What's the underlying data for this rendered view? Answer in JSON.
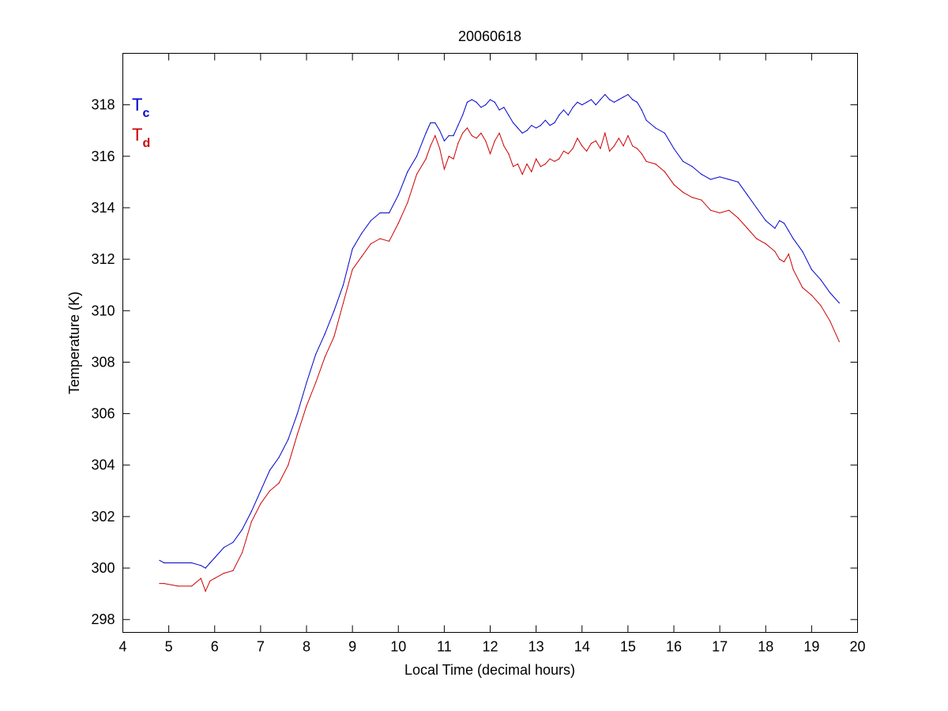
{
  "chart_data": {
    "type": "line",
    "title": "20060618",
    "xlabel": "Local Time (decimal hours)",
    "ylabel": "Temperature (K)",
    "xlim": [
      4,
      20
    ],
    "ylim": [
      297.5,
      320
    ],
    "xticks": [
      4,
      5,
      6,
      7,
      8,
      9,
      10,
      11,
      12,
      13,
      14,
      15,
      16,
      17,
      18,
      19,
      20
    ],
    "yticks": [
      298,
      300,
      302,
      304,
      306,
      308,
      310,
      312,
      314,
      316,
      318
    ],
    "grid": false,
    "legend": {
      "position": "top-left",
      "entries": [
        {
          "main": "T",
          "sub": "c",
          "color": "#0000cc"
        },
        {
          "main": "T",
          "sub": "d",
          "color": "#cc0000"
        }
      ]
    },
    "series": [
      {
        "color": "#0000cc",
        "x": [
          4.8,
          4.9,
          5.2,
          5.5,
          5.7,
          5.8,
          5.9,
          6.0,
          6.2,
          6.4,
          6.6,
          6.8,
          7.0,
          7.2,
          7.4,
          7.6,
          7.8,
          8.0,
          8.2,
          8.4,
          8.6,
          8.8,
          9.0,
          9.2,
          9.4,
          9.6,
          9.8,
          10.0,
          10.2,
          10.4,
          10.6,
          10.7,
          10.8,
          10.9,
          11.0,
          11.1,
          11.2,
          11.3,
          11.4,
          11.5,
          11.6,
          11.7,
          11.8,
          11.9,
          12.0,
          12.1,
          12.2,
          12.3,
          12.4,
          12.5,
          12.6,
          12.7,
          12.8,
          12.9,
          13.0,
          13.1,
          13.2,
          13.3,
          13.4,
          13.5,
          13.6,
          13.7,
          13.8,
          13.9,
          14.0,
          14.1,
          14.2,
          14.3,
          14.4,
          14.5,
          14.6,
          14.7,
          14.8,
          14.9,
          15.0,
          15.1,
          15.2,
          15.3,
          15.4,
          15.6,
          15.8,
          16.0,
          16.2,
          16.4,
          16.6,
          16.8,
          17.0,
          17.2,
          17.4,
          17.6,
          17.8,
          18.0,
          18.2,
          18.3,
          18.4,
          18.5,
          18.6,
          18.8,
          19.0,
          19.2,
          19.4,
          19.6
        ],
        "y": [
          300.3,
          300.2,
          300.2,
          300.2,
          300.1,
          300.0,
          300.2,
          300.4,
          300.8,
          301.0,
          301.5,
          302.2,
          303.0,
          303.8,
          304.3,
          305.0,
          306.0,
          307.2,
          308.3,
          309.1,
          310.0,
          311.0,
          312.4,
          313.0,
          313.5,
          313.8,
          313.8,
          314.5,
          315.4,
          316.0,
          316.9,
          317.3,
          317.3,
          317.0,
          316.6,
          316.8,
          316.8,
          317.2,
          317.6,
          318.1,
          318.2,
          318.1,
          317.9,
          318.0,
          318.2,
          318.1,
          317.8,
          317.9,
          317.6,
          317.3,
          317.1,
          316.9,
          317.0,
          317.2,
          317.1,
          317.2,
          317.4,
          317.2,
          317.3,
          317.6,
          317.8,
          317.6,
          317.9,
          318.1,
          318.0,
          318.1,
          318.2,
          318.0,
          318.2,
          318.4,
          318.2,
          318.1,
          318.2,
          318.3,
          318.4,
          318.2,
          318.1,
          317.8,
          317.4,
          317.1,
          316.9,
          316.3,
          315.8,
          315.6,
          315.3,
          315.1,
          315.2,
          315.1,
          315.0,
          314.5,
          314.0,
          313.5,
          313.2,
          313.5,
          313.4,
          313.1,
          312.8,
          312.3,
          311.6,
          311.2,
          310.7,
          310.3
        ]
      },
      {
        "color": "#cc0000",
        "x": [
          4.8,
          4.9,
          5.2,
          5.5,
          5.7,
          5.8,
          5.9,
          6.0,
          6.2,
          6.4,
          6.6,
          6.8,
          7.0,
          7.2,
          7.4,
          7.6,
          7.8,
          8.0,
          8.2,
          8.4,
          8.6,
          8.8,
          9.0,
          9.2,
          9.4,
          9.6,
          9.8,
          10.0,
          10.2,
          10.4,
          10.6,
          10.7,
          10.8,
          10.9,
          11.0,
          11.1,
          11.2,
          11.3,
          11.4,
          11.5,
          11.6,
          11.7,
          11.8,
          11.9,
          12.0,
          12.1,
          12.2,
          12.3,
          12.4,
          12.5,
          12.6,
          12.7,
          12.8,
          12.9,
          13.0,
          13.1,
          13.2,
          13.3,
          13.4,
          13.5,
          13.6,
          13.7,
          13.8,
          13.9,
          14.0,
          14.1,
          14.2,
          14.3,
          14.4,
          14.5,
          14.6,
          14.7,
          14.8,
          14.9,
          15.0,
          15.1,
          15.2,
          15.3,
          15.4,
          15.6,
          15.8,
          16.0,
          16.2,
          16.4,
          16.6,
          16.8,
          17.0,
          17.2,
          17.4,
          17.6,
          17.8,
          18.0,
          18.2,
          18.3,
          18.4,
          18.5,
          18.6,
          18.8,
          19.0,
          19.2,
          19.4,
          19.6
        ],
        "y": [
          299.4,
          299.4,
          299.3,
          299.3,
          299.6,
          299.1,
          299.5,
          299.6,
          299.8,
          299.9,
          300.6,
          301.8,
          302.5,
          303.0,
          303.3,
          304.0,
          305.2,
          306.3,
          307.2,
          308.2,
          309.0,
          310.3,
          311.6,
          312.1,
          312.6,
          312.8,
          312.7,
          313.4,
          314.2,
          315.3,
          315.9,
          316.4,
          316.8,
          316.3,
          315.5,
          316.0,
          315.9,
          316.5,
          316.9,
          317.1,
          316.8,
          316.7,
          316.9,
          316.6,
          316.1,
          316.6,
          316.9,
          316.4,
          316.1,
          315.6,
          315.7,
          315.3,
          315.7,
          315.4,
          315.9,
          315.6,
          315.7,
          315.9,
          315.8,
          315.9,
          316.2,
          316.1,
          316.3,
          316.7,
          316.4,
          316.2,
          316.5,
          316.6,
          316.3,
          316.9,
          316.2,
          316.4,
          316.7,
          316.4,
          316.8,
          316.4,
          316.3,
          316.1,
          315.8,
          315.7,
          315.4,
          314.9,
          314.6,
          314.4,
          314.3,
          313.9,
          313.8,
          313.9,
          313.6,
          313.2,
          312.8,
          312.6,
          312.3,
          312.0,
          311.9,
          312.2,
          311.6,
          310.9,
          310.6,
          310.2,
          309.6,
          308.8
        ]
      }
    ]
  }
}
